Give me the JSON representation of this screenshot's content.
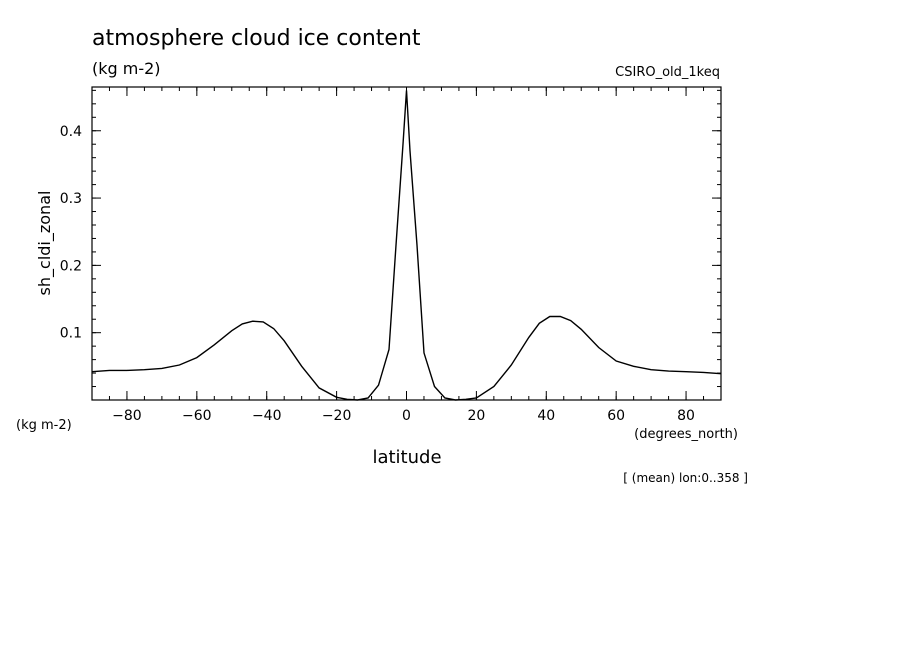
{
  "header": {
    "title": "atmosphere cloud ice content",
    "units": "(kg m-2)",
    "model": "CSIRO_old_1keq"
  },
  "footer": {
    "note": "[ (mean) lon:0..358 ]"
  },
  "chart_data": {
    "type": "line",
    "title": "atmosphere cloud ice content",
    "xlabel": "latitude",
    "xunits": "(degrees_north)",
    "ylabel": "sh_cldi_zonal",
    "yunits": "(kg m-2)",
    "xlim": [
      -90,
      90
    ],
    "ylim": [
      0,
      0.465
    ],
    "xticks": [
      -80,
      -60,
      -40,
      -20,
      0,
      20,
      40,
      60,
      80
    ],
    "yticks": [
      0.1,
      0.2,
      0.3,
      0.4
    ],
    "grid": false,
    "series": [
      {
        "x": [
          -90,
          -85,
          -80,
          -75,
          -70,
          -65,
          -60,
          -55,
          -50,
          -47,
          -44,
          -41,
          -38,
          -35,
          -30,
          -25,
          -20,
          -17,
          -14,
          -11,
          -8,
          -5,
          -3,
          -1,
          0,
          1,
          3,
          5,
          8,
          11,
          14,
          17,
          20,
          25,
          30,
          35,
          38,
          41,
          44,
          47,
          50,
          55,
          60,
          65,
          70,
          75,
          80,
          85,
          90
        ],
        "y": [
          0.042,
          0.044,
          0.044,
          0.045,
          0.047,
          0.052,
          0.063,
          0.082,
          0.103,
          0.113,
          0.117,
          0.116,
          0.106,
          0.088,
          0.05,
          0.018,
          0.004,
          0.001,
          0.0,
          0.003,
          0.022,
          0.075,
          0.23,
          0.38,
          0.46,
          0.37,
          0.23,
          0.07,
          0.02,
          0.003,
          0.0,
          0.001,
          0.003,
          0.02,
          0.052,
          0.093,
          0.114,
          0.124,
          0.124,
          0.118,
          0.105,
          0.078,
          0.058,
          0.05,
          0.045,
          0.043,
          0.042,
          0.041,
          0.039
        ]
      }
    ]
  }
}
